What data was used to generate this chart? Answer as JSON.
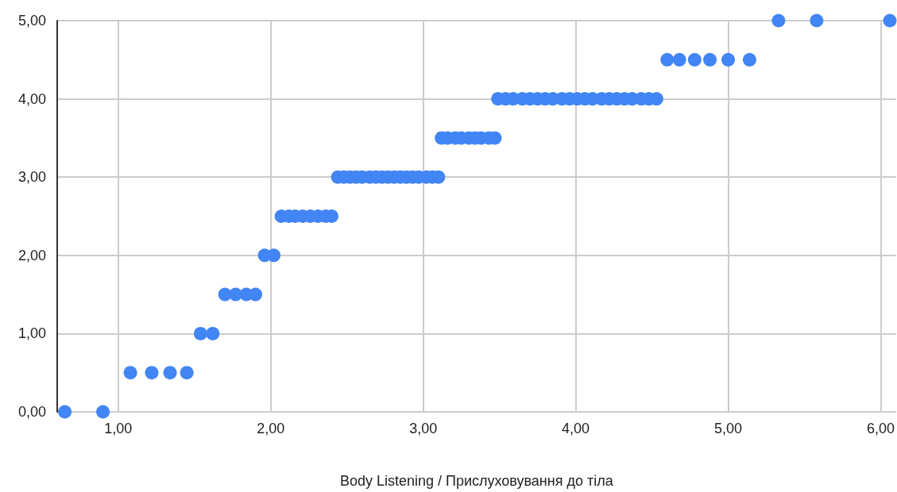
{
  "chart_data": {
    "type": "scatter",
    "xlabel": "Body Listening / Прислуховування до тіла",
    "x": [
      0.65,
      0.9,
      1.08,
      1.22,
      1.34,
      1.45,
      1.54,
      1.62,
      1.7,
      1.77,
      1.84,
      1.9,
      1.96,
      2.02,
      2.07,
      2.12,
      2.16,
      2.21,
      2.26,
      2.31,
      2.36,
      2.4,
      2.44,
      2.48,
      2.52,
      2.56,
      2.6,
      2.65,
      2.69,
      2.73,
      2.77,
      2.81,
      2.85,
      2.89,
      2.93,
      2.97,
      3.02,
      3.06,
      3.1,
      3.12,
      3.16,
      3.21,
      3.25,
      3.3,
      3.34,
      3.38,
      3.43,
      3.47,
      3.49,
      3.54,
      3.59,
      3.65,
      3.7,
      3.75,
      3.8,
      3.85,
      3.91,
      3.96,
      4.01,
      4.06,
      4.11,
      4.17,
      4.22,
      4.27,
      4.32,
      4.37,
      4.43,
      4.48,
      4.53,
      4.6,
      4.68,
      4.78,
      4.88,
      5.0,
      5.14,
      5.33,
      5.58,
      6.06
    ],
    "series": [
      {
        "color": "#4285f4",
        "values": [
          0,
          0,
          0.5,
          0.5,
          0.5,
          0.5,
          1,
          1,
          1.5,
          1.5,
          1.5,
          1.5,
          2,
          2,
          2.5,
          2.5,
          2.5,
          2.5,
          2.5,
          2.5,
          2.5,
          2.5,
          3,
          3,
          3,
          3,
          3,
          3,
          3,
          3,
          3,
          3,
          3,
          3,
          3,
          3,
          3,
          3,
          3,
          3.5,
          3.5,
          3.5,
          3.5,
          3.5,
          3.5,
          3.5,
          3.5,
          3.5,
          4,
          4,
          4,
          4,
          4,
          4,
          4,
          4,
          4,
          4,
          4,
          4,
          4,
          4,
          4,
          4,
          4,
          4,
          4,
          4,
          4,
          4.5,
          4.5,
          4.5,
          4.5,
          4.5,
          4.5,
          5,
          5,
          5
        ]
      }
    ],
    "xlim": [
      0.6,
      6.1
    ],
    "xticks": [
      {
        "value": 1,
        "label": "1,00"
      },
      {
        "value": 2,
        "label": "2,00"
      },
      {
        "value": 3,
        "label": "3,00"
      },
      {
        "value": 4,
        "label": "4,00"
      },
      {
        "value": 5,
        "label": "5,00"
      },
      {
        "value": 6,
        "label": "6,00"
      }
    ],
    "ylim": [
      0,
      5
    ],
    "yticks": [
      {
        "value": 0,
        "label": "0,00"
      },
      {
        "value": 1,
        "label": "1,00"
      },
      {
        "value": 2,
        "label": "2,00"
      },
      {
        "value": 3,
        "label": "3,00"
      },
      {
        "value": 4,
        "label": "4,00"
      },
      {
        "value": 5,
        "label": "5,00"
      }
    ],
    "grid": true,
    "marker": "circle"
  }
}
